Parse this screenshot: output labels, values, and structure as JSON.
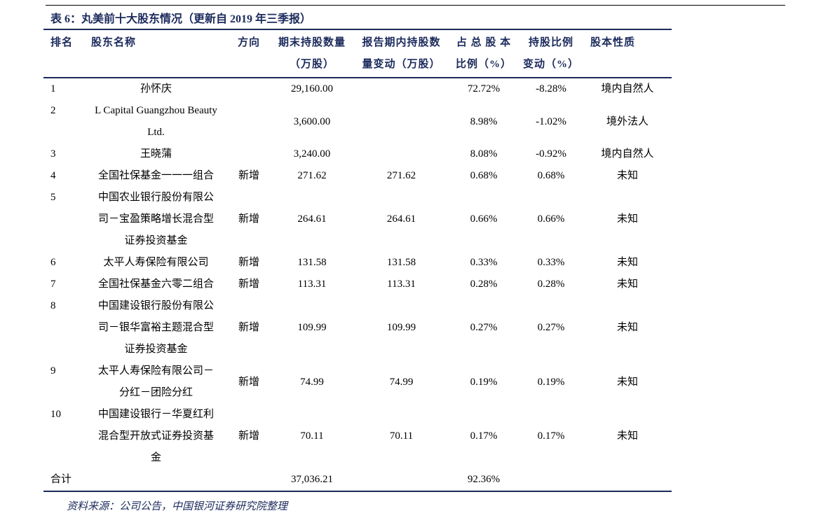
{
  "title": "表 6：丸美前十大股东情况（更新自 2019 年三季报）",
  "table": {
    "header": [
      [
        "排名"
      ],
      [
        "股东名称"
      ],
      [
        "方向"
      ],
      [
        "期末持股数量",
        "（万股）"
      ],
      [
        "报告期内持股数",
        "量变动（万股）"
      ],
      [
        "占 总 股 本",
        "比例（%）"
      ],
      [
        "持股比例",
        "变动（%）"
      ],
      [
        "股本性质"
      ]
    ],
    "rows": [
      [
        [
          "1"
        ],
        [
          "孙怀庆"
        ],
        null,
        [
          "29,160.00"
        ],
        null,
        [
          "72.72%"
        ],
        [
          "-8.28%"
        ],
        [
          "境内自然人"
        ]
      ],
      [
        [
          "2"
        ],
        [
          "L Capital Guangzhou Beauty",
          "Ltd."
        ],
        null,
        [
          "3,600.00"
        ],
        null,
        [
          "8.98%"
        ],
        [
          "-1.02%"
        ],
        [
          "境外法人"
        ]
      ],
      [
        [
          "3"
        ],
        [
          "王晓蒲"
        ],
        null,
        [
          "3,240.00"
        ],
        null,
        [
          "8.08%"
        ],
        [
          "-0.92%"
        ],
        [
          "境内自然人"
        ]
      ],
      [
        [
          "4"
        ],
        [
          "全国社保基金一一一组合"
        ],
        [
          "新增"
        ],
        [
          "271.62"
        ],
        [
          "271.62"
        ],
        [
          "0.68%"
        ],
        [
          "0.68%"
        ],
        [
          "未知"
        ]
      ],
      [
        [
          "5"
        ],
        [
          "中国农业银行股份有限公",
          "司－宝盈策略增长混合型",
          "证券投资基金"
        ],
        [
          "新增"
        ],
        [
          "264.61"
        ],
        [
          "264.61"
        ],
        [
          "0.66%"
        ],
        [
          "0.66%"
        ],
        [
          "未知"
        ]
      ],
      [
        [
          "6"
        ],
        [
          "太平人寿保险有限公司"
        ],
        [
          "新增"
        ],
        [
          "131.58"
        ],
        [
          "131.58"
        ],
        [
          "0.33%"
        ],
        [
          "0.33%"
        ],
        [
          "未知"
        ]
      ],
      [
        [
          "7"
        ],
        [
          "全国社保基金六零二组合"
        ],
        [
          "新增"
        ],
        [
          "113.31"
        ],
        [
          "113.31"
        ],
        [
          "0.28%"
        ],
        [
          "0.28%"
        ],
        [
          "未知"
        ]
      ],
      [
        [
          "8"
        ],
        [
          "中国建设银行股份有限公",
          "司－银华富裕主题混合型",
          "证券投资基金"
        ],
        [
          "新增"
        ],
        [
          "109.99"
        ],
        [
          "109.99"
        ],
        [
          "0.27%"
        ],
        [
          "0.27%"
        ],
        [
          "未知"
        ]
      ],
      [
        [
          "9"
        ],
        [
          "太平人寿保险有限公司－",
          "分红－团险分红"
        ],
        [
          "新增"
        ],
        [
          "74.99"
        ],
        [
          "74.99"
        ],
        [
          "0.19%"
        ],
        [
          "0.19%"
        ],
        [
          "未知"
        ]
      ],
      [
        [
          "10"
        ],
        [
          "中国建设银行－华夏红利",
          "混合型开放式证券投资基",
          "金"
        ],
        [
          "新增"
        ],
        [
          "70.11"
        ],
        [
          "70.11"
        ],
        [
          "0.17%"
        ],
        [
          "0.17%"
        ],
        [
          "未知"
        ]
      ]
    ],
    "total": [
      [
        "合计"
      ],
      null,
      null,
      [
        "37,036.21"
      ],
      null,
      [
        "92.36%"
      ],
      null,
      null
    ]
  },
  "source": "资料来源：公司公告，中国银河证券研究院整理"
}
